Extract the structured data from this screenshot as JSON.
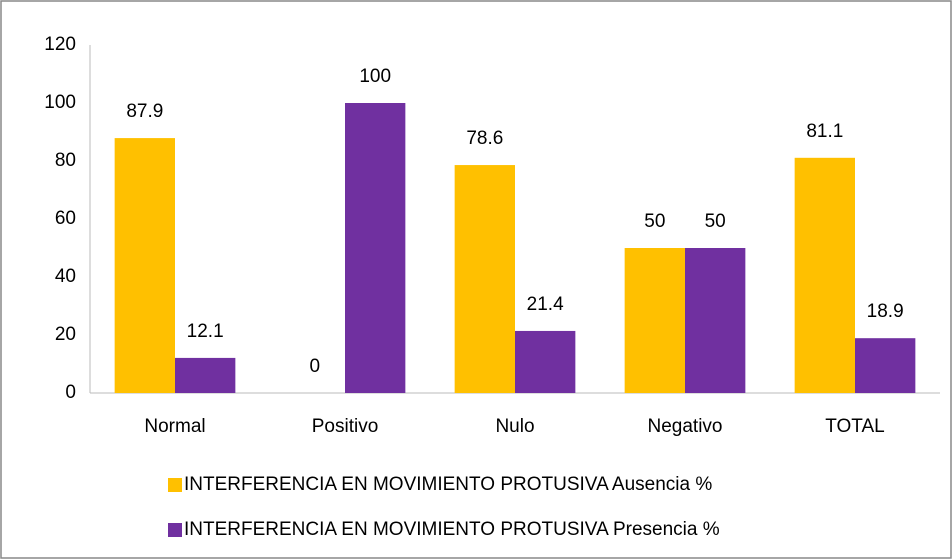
{
  "chart_data": {
    "type": "bar",
    "categories": [
      "Normal",
      "Positivo",
      "Nulo",
      "Negativo",
      "TOTAL"
    ],
    "series": [
      {
        "name": "INTERFERENCIA EN MOVIMIENTO PROTUSIVA Ausencia %",
        "color": "#ffc000",
        "values": [
          87.9,
          0,
          78.6,
          50,
          81.1
        ]
      },
      {
        "name": "INTERFERENCIA EN MOVIMIENTO PROTUSIVA Presencia %",
        "color": "#7030a0",
        "values": [
          12.1,
          100,
          21.4,
          50,
          18.9
        ]
      }
    ],
    "ylim": [
      0,
      120
    ],
    "yticks": [
      0,
      20,
      40,
      60,
      80,
      100,
      120
    ],
    "grid": false,
    "legend": "bottom"
  }
}
